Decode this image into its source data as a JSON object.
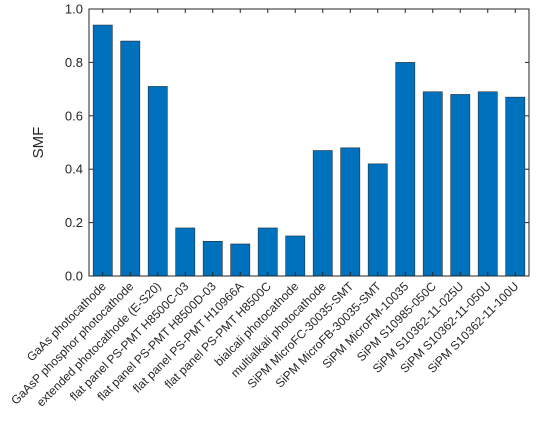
{
  "chart_data": {
    "type": "bar",
    "title": "",
    "xlabel": "",
    "ylabel": "SMF",
    "ylim": [
      0,
      1.0
    ],
    "yticks": [
      0.0,
      0.2,
      0.4,
      0.6,
      0.8,
      1.0
    ],
    "ytick_labels": [
      "0.0",
      "0.2",
      "0.4",
      "0.6",
      "0.8",
      "1.0"
    ],
    "grid": false,
    "bar_color": "#0072BD",
    "categories": [
      "GaAs photocathode",
      "GaAsP phosphor photocathode",
      "extended photocathode (E-S20)",
      "flat panel PS-PMT H8500C-03",
      "flat panel PS-PMT H8500D-03",
      "flat panel PS-PMT H10966A",
      "flat panel PS-PMT H8500C",
      "bialcali photocathode",
      "multialkali photocathode",
      "SiPM MicroFC-30035-SMT",
      "SiPM MicroFB-30035-SMT",
      "SiPM MicroFM-10035",
      "SiPM S10985-050C",
      "SiPM S10362-11-025U",
      "SiPM S10362-11-050U",
      "SiPM S10362-11-100U"
    ],
    "values": [
      0.94,
      0.88,
      0.71,
      0.18,
      0.13,
      0.12,
      0.18,
      0.15,
      0.47,
      0.48,
      0.42,
      0.8,
      0.69,
      0.68,
      0.69,
      0.67
    ]
  }
}
